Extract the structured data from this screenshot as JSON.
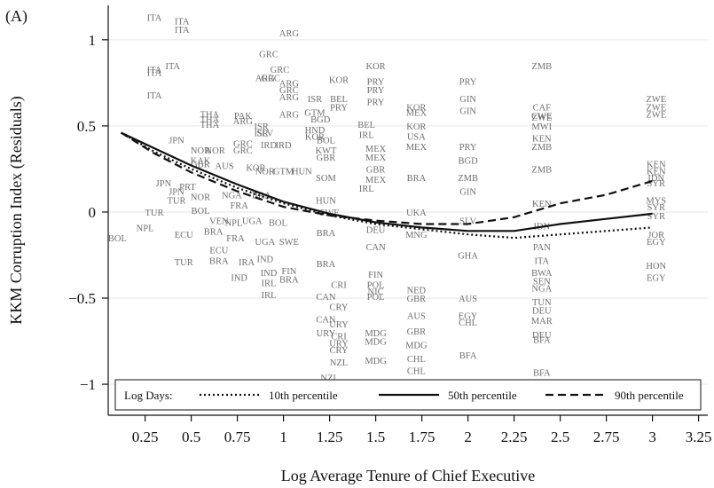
{
  "panel_label": "(A)",
  "chart_data": {
    "type": "line",
    "title": "",
    "xlabel": "Log Average Tenure of Chief Executive",
    "ylabel": "KKM Corruption Index (Residuals)",
    "xlim": [
      0.05,
      3.3
    ],
    "ylim": [
      -1.18,
      1.2
    ],
    "x_ticks": [
      0.25,
      0.5,
      0.75,
      1,
      1.25,
      1.5,
      1.75,
      2,
      2.25,
      2.5,
      2.75,
      3,
      3.25
    ],
    "x_tick_labels": [
      "0.25",
      "0.5",
      "0.75",
      "1",
      "1.25",
      "1.5",
      "1.75",
      "2",
      "2.25",
      "2.5",
      "2.75",
      "3",
      "3.25"
    ],
    "y_ticks": [
      -1,
      -0.5,
      0,
      0.5,
      1
    ],
    "y_tick_labels": [
      "−1",
      "−0.5",
      "0",
      "0.5",
      "1"
    ],
    "grid": true,
    "legend": {
      "position": "bottom",
      "title": "Log Days:",
      "entries": [
        "10th percentile",
        "50th percentile",
        "90th percentile"
      ]
    },
    "series": [
      {
        "name": "10th percentile",
        "dash": "dotted",
        "x": [
          0.12,
          0.3,
          0.5,
          0.75,
          1.0,
          1.25,
          1.5,
          1.75,
          2.0,
          2.25,
          2.5,
          2.75,
          3.0
        ],
        "y": [
          0.46,
          0.35,
          0.25,
          0.14,
          0.05,
          -0.02,
          -0.07,
          -0.1,
          -0.13,
          -0.15,
          -0.13,
          -0.11,
          -0.09
        ]
      },
      {
        "name": "50th percentile",
        "dash": "solid",
        "x": [
          0.12,
          0.3,
          0.5,
          0.75,
          1.0,
          1.25,
          1.5,
          1.75,
          2.0,
          2.25,
          2.5,
          2.75,
          3.0
        ],
        "y": [
          0.46,
          0.37,
          0.27,
          0.16,
          0.06,
          -0.01,
          -0.06,
          -0.09,
          -0.11,
          -0.11,
          -0.07,
          -0.04,
          -0.01
        ]
      },
      {
        "name": "90th percentile",
        "dash": "dashed",
        "x": [
          0.12,
          0.3,
          0.5,
          0.75,
          1.0,
          1.25,
          1.5,
          1.75,
          2.0,
          2.25,
          2.5,
          2.75,
          3.0
        ],
        "y": [
          0.46,
          0.34,
          0.23,
          0.12,
          0.03,
          -0.02,
          -0.05,
          -0.07,
          -0.07,
          -0.03,
          0.05,
          0.1,
          0.18
        ]
      }
    ],
    "points": [
      {
        "label": "ITA",
        "x": 0.3,
        "y": 1.13
      },
      {
        "label": "ITA",
        "x": 0.45,
        "y": 1.11
      },
      {
        "label": "ITA",
        "x": 0.45,
        "y": 1.06
      },
      {
        "label": "ITA",
        "x": 0.4,
        "y": 0.85
      },
      {
        "label": "ITA",
        "x": 0.3,
        "y": 0.83
      },
      {
        "label": "ITA",
        "x": 0.3,
        "y": 0.81
      },
      {
        "label": "ITA",
        "x": 0.3,
        "y": 0.68
      },
      {
        "label": "ARG",
        "x": 1.03,
        "y": 1.04
      },
      {
        "label": "GRC",
        "x": 0.92,
        "y": 0.92
      },
      {
        "label": "GRC",
        "x": 0.98,
        "y": 0.83
      },
      {
        "label": "ARG",
        "x": 0.9,
        "y": 0.78
      },
      {
        "label": "GRC",
        "x": 0.93,
        "y": 0.78
      },
      {
        "label": "ARG",
        "x": 1.03,
        "y": 0.75
      },
      {
        "label": "GRC",
        "x": 1.03,
        "y": 0.71
      },
      {
        "label": "ARG",
        "x": 1.03,
        "y": 0.67
      },
      {
        "label": "ARG",
        "x": 1.03,
        "y": 0.57
      },
      {
        "label": "KOR",
        "x": 1.3,
        "y": 0.77
      },
      {
        "label": "BEL",
        "x": 1.3,
        "y": 0.66
      },
      {
        "label": "PRY",
        "x": 1.3,
        "y": 0.61
      },
      {
        "label": "ISR",
        "x": 1.17,
        "y": 0.66
      },
      {
        "label": "GTM",
        "x": 1.17,
        "y": 0.58
      },
      {
        "label": "BGD",
        "x": 1.2,
        "y": 0.54
      },
      {
        "label": "KOR",
        "x": 1.5,
        "y": 0.85
      },
      {
        "label": "PRY",
        "x": 1.5,
        "y": 0.76
      },
      {
        "label": "PRY",
        "x": 1.5,
        "y": 0.71
      },
      {
        "label": "PRY",
        "x": 1.5,
        "y": 0.64
      },
      {
        "label": "PRY",
        "x": 2.0,
        "y": 0.76
      },
      {
        "label": "GIN",
        "x": 2.0,
        "y": 0.66
      },
      {
        "label": "GIN",
        "x": 2.0,
        "y": 0.59
      },
      {
        "label": "ZMB",
        "x": 2.4,
        "y": 0.85
      },
      {
        "label": "CAF",
        "x": 2.4,
        "y": 0.61
      },
      {
        "label": "CWE",
        "x": 2.4,
        "y": 0.56
      },
      {
        "label": "ZWE",
        "x": 2.4,
        "y": 0.55
      },
      {
        "label": "MWI",
        "x": 2.4,
        "y": 0.5
      },
      {
        "label": "ZWE",
        "x": 3.02,
        "y": 0.66
      },
      {
        "label": "ZWE",
        "x": 3.02,
        "y": 0.61
      },
      {
        "label": "ZWE",
        "x": 3.02,
        "y": 0.57
      },
      {
        "label": "KOR",
        "x": 1.72,
        "y": 0.61
      },
      {
        "label": "MEX",
        "x": 1.72,
        "y": 0.58
      },
      {
        "label": "THA",
        "x": 0.6,
        "y": 0.57
      },
      {
        "label": "THA",
        "x": 0.6,
        "y": 0.54
      },
      {
        "label": "THA",
        "x": 0.6,
        "y": 0.51
      },
      {
        "label": "PAK",
        "x": 0.78,
        "y": 0.56
      },
      {
        "label": "ARG",
        "x": 0.78,
        "y": 0.53
      },
      {
        "label": "ISR",
        "x": 0.88,
        "y": 0.5
      },
      {
        "label": "ISR",
        "x": 0.88,
        "y": 0.46
      },
      {
        "label": "JPN",
        "x": 0.42,
        "y": 0.42
      },
      {
        "label": "SLV",
        "x": 0.9,
        "y": 0.46
      },
      {
        "label": "GRC",
        "x": 0.78,
        "y": 0.4
      },
      {
        "label": "IRD",
        "x": 0.92,
        "y": 0.39
      },
      {
        "label": "IRD",
        "x": 1.0,
        "y": 0.39
      },
      {
        "label": "HND",
        "x": 1.17,
        "y": 0.48
      },
      {
        "label": "KOR",
        "x": 1.17,
        "y": 0.44
      },
      {
        "label": "BEL",
        "x": 1.45,
        "y": 0.51
      },
      {
        "label": "IRL",
        "x": 1.45,
        "y": 0.45
      },
      {
        "label": "NOR",
        "x": 0.55,
        "y": 0.36
      },
      {
        "label": "NOR",
        "x": 0.63,
        "y": 0.36
      },
      {
        "label": "GRC",
        "x": 0.78,
        "y": 0.36
      },
      {
        "label": "KAK",
        "x": 0.55,
        "y": 0.3
      },
      {
        "label": "GBR",
        "x": 0.55,
        "y": 0.28
      },
      {
        "label": "AUS",
        "x": 0.68,
        "y": 0.27
      },
      {
        "label": "NOR",
        "x": 0.9,
        "y": 0.24
      },
      {
        "label": "KOR",
        "x": 0.85,
        "y": 0.26
      },
      {
        "label": "GTM",
        "x": 1.0,
        "y": 0.24
      },
      {
        "label": "HUN",
        "x": 1.1,
        "y": 0.24
      },
      {
        "label": "JPN",
        "x": 0.35,
        "y": 0.17
      },
      {
        "label": "PRT",
        "x": 0.48,
        "y": 0.15
      },
      {
        "label": "JPN",
        "x": 0.42,
        "y": 0.12
      },
      {
        "label": "TUR",
        "x": 0.42,
        "y": 0.07
      },
      {
        "label": "NOR",
        "x": 0.55,
        "y": 0.09
      },
      {
        "label": "NGA",
        "x": 0.72,
        "y": 0.1
      },
      {
        "label": "BRA",
        "x": 0.88,
        "y": 0.1
      },
      {
        "label": "TUR",
        "x": 0.3,
        "y": 0.0
      },
      {
        "label": "BOL",
        "x": 0.55,
        "y": 0.01
      },
      {
        "label": "FRA",
        "x": 0.76,
        "y": 0.04
      },
      {
        "label": "NPL",
        "x": 0.25,
        "y": -0.09
      },
      {
        "label": "BOL",
        "x": 0.1,
        "y": -0.15
      },
      {
        "label": "VEN",
        "x": 0.65,
        "y": -0.05
      },
      {
        "label": "NPL",
        "x": 0.73,
        "y": -0.06
      },
      {
        "label": "UGA",
        "x": 0.83,
        "y": -0.05
      },
      {
        "label": "BOL",
        "x": 0.97,
        "y": -0.06
      },
      {
        "label": "ECU",
        "x": 0.46,
        "y": -0.13
      },
      {
        "label": "BRA",
        "x": 0.62,
        "y": -0.11
      },
      {
        "label": "FRA",
        "x": 0.74,
        "y": -0.15
      },
      {
        "label": "UGA",
        "x": 0.9,
        "y": -0.17
      },
      {
        "label": "SWE",
        "x": 1.03,
        "y": -0.17
      },
      {
        "label": "ECU",
        "x": 0.65,
        "y": -0.22
      },
      {
        "label": "TUR",
        "x": 0.46,
        "y": -0.29
      },
      {
        "label": "BRA",
        "x": 0.65,
        "y": -0.28
      },
      {
        "label": "IRA",
        "x": 0.8,
        "y": -0.29
      },
      {
        "label": "IND",
        "x": 0.9,
        "y": -0.27
      },
      {
        "label": "IND",
        "x": 0.92,
        "y": -0.35
      },
      {
        "label": "IND",
        "x": 0.76,
        "y": -0.38
      },
      {
        "label": "IRL",
        "x": 0.92,
        "y": -0.41
      },
      {
        "label": "IRL",
        "x": 0.92,
        "y": -0.48
      },
      {
        "label": "FIN",
        "x": 1.03,
        "y": -0.34
      },
      {
        "label": "BRA",
        "x": 1.03,
        "y": -0.39
      },
      {
        "label": "BRA",
        "x": 1.23,
        "y": -0.12
      },
      {
        "label": "BRA",
        "x": 1.23,
        "y": -0.3
      },
      {
        "label": "CAN",
        "x": 1.23,
        "y": -0.49
      },
      {
        "label": "CAN",
        "x": 1.23,
        "y": -0.62
      },
      {
        "label": "CRI",
        "x": 1.3,
        "y": -0.42
      },
      {
        "label": "CRY",
        "x": 1.3,
        "y": -0.55
      },
      {
        "label": "URY",
        "x": 1.3,
        "y": -0.65
      },
      {
        "label": "CRI",
        "x": 1.3,
        "y": -0.72
      },
      {
        "label": "URY",
        "x": 1.3,
        "y": -0.76
      },
      {
        "label": "CRY",
        "x": 1.3,
        "y": -0.8
      },
      {
        "label": "NZL",
        "x": 1.3,
        "y": -0.87
      },
      {
        "label": "NZL",
        "x": 1.25,
        "y": -0.96
      },
      {
        "label": "FIN",
        "x": 1.5,
        "y": -0.36
      },
      {
        "label": "POL",
        "x": 1.5,
        "y": -0.42
      },
      {
        "label": "NIC",
        "x": 1.5,
        "y": -0.46
      },
      {
        "label": "POL",
        "x": 1.5,
        "y": -0.49
      },
      {
        "label": "MDG",
        "x": 1.5,
        "y": -0.7
      },
      {
        "label": "MDG",
        "x": 1.5,
        "y": -0.75
      },
      {
        "label": "MDG",
        "x": 1.5,
        "y": -0.86
      },
      {
        "label": "AUS",
        "x": 1.72,
        "y": -0.6
      },
      {
        "label": "GBR",
        "x": 1.72,
        "y": -0.69
      },
      {
        "label": "MDG",
        "x": 1.72,
        "y": -0.77
      },
      {
        "label": "CHL",
        "x": 1.72,
        "y": -0.85
      },
      {
        "label": "CHL",
        "x": 1.72,
        "y": -0.92
      },
      {
        "label": "AUS",
        "x": 2.0,
        "y": -0.5
      },
      {
        "label": "EGY",
        "x": 2.0,
        "y": -0.6
      },
      {
        "label": "CHL",
        "x": 2.0,
        "y": -0.64
      },
      {
        "label": "BFA",
        "x": 2.0,
        "y": -0.83
      },
      {
        "label": "DEU",
        "x": 2.4,
        "y": -0.57
      },
      {
        "label": "MAR",
        "x": 2.4,
        "y": -0.63
      },
      {
        "label": "DEU",
        "x": 2.4,
        "y": -0.71
      },
      {
        "label": "BFA",
        "x": 2.4,
        "y": -0.74
      },
      {
        "label": "BFA",
        "x": 2.4,
        "y": -0.93
      },
      {
        "label": "KEN",
        "x": 2.4,
        "y": 0.43
      },
      {
        "label": "ZMB",
        "x": 2.4,
        "y": 0.38
      },
      {
        "label": "ZMB",
        "x": 2.4,
        "y": 0.25
      },
      {
        "label": "KEN",
        "x": 2.4,
        "y": 0.05
      },
      {
        "label": "BWA",
        "x": 2.4,
        "y": -0.35
      },
      {
        "label": "SEN",
        "x": 2.4,
        "y": -0.4
      },
      {
        "label": "KEN",
        "x": 3.02,
        "y": 0.28
      },
      {
        "label": "KEN",
        "x": 3.02,
        "y": 0.24
      },
      {
        "label": "IDN",
        "x": 3.02,
        "y": 0.2
      },
      {
        "label": "SYR",
        "x": 3.02,
        "y": 0.17
      },
      {
        "label": "MYS",
        "x": 3.02,
        "y": 0.07
      },
      {
        "label": "SYR",
        "x": 3.02,
        "y": 0.03
      },
      {
        "label": "SYR",
        "x": 3.02,
        "y": -0.02
      },
      {
        "label": "JOR",
        "x": 3.02,
        "y": -0.13
      },
      {
        "label": "EGY",
        "x": 3.02,
        "y": -0.17
      },
      {
        "label": "HON",
        "x": 3.02,
        "y": -0.31
      },
      {
        "label": "EGY",
        "x": 3.02,
        "y": -0.38
      },
      {
        "label": "GBR",
        "x": 1.72,
        "y": -0.5
      },
      {
        "label": "NED",
        "x": 1.72,
        "y": -0.45
      },
      {
        "label": "UKA",
        "x": 1.72,
        "y": 0.0
      },
      {
        "label": "BRA",
        "x": 1.72,
        "y": 0.2
      },
      {
        "label": "MEX",
        "x": 1.5,
        "y": 0.37
      },
      {
        "label": "MEX",
        "x": 1.5,
        "y": 0.32
      },
      {
        "label": "GBR",
        "x": 1.5,
        "y": 0.25
      },
      {
        "label": "MEX",
        "x": 1.5,
        "y": 0.19
      },
      {
        "label": "CAN",
        "x": 1.5,
        "y": -0.2
      },
      {
        "label": "DEU",
        "x": 1.5,
        "y": -0.1
      },
      {
        "label": "KOR",
        "x": 1.72,
        "y": 0.5
      },
      {
        "label": "USA",
        "x": 1.72,
        "y": 0.44
      },
      {
        "label": "MEX",
        "x": 1.72,
        "y": 0.38
      },
      {
        "label": "IRL",
        "x": 1.45,
        "y": 0.14
      },
      {
        "label": "SWE",
        "x": 1.25,
        "y": 0.0
      },
      {
        "label": "KWT",
        "x": 1.23,
        "y": 0.36
      },
      {
        "label": "GBR",
        "x": 1.23,
        "y": 0.32
      },
      {
        "label": "URY",
        "x": 1.23,
        "y": -0.7
      },
      {
        "label": "PRY",
        "x": 2.0,
        "y": 0.38
      },
      {
        "label": "BGD",
        "x": 2.0,
        "y": 0.3
      },
      {
        "label": "ZMB",
        "x": 2.0,
        "y": 0.2
      },
      {
        "label": "HUN",
        "x": 1.23,
        "y": 0.07
      },
      {
        "label": "SOM",
        "x": 1.23,
        "y": 0.2
      },
      {
        "label": "BOL",
        "x": 1.23,
        "y": 0.42
      },
      {
        "label": "MNG",
        "x": 1.72,
        "y": -0.13
      },
      {
        "label": "GIN",
        "x": 2.0,
        "y": 0.12
      },
      {
        "label": "SLV",
        "x": 2.0,
        "y": -0.05
      },
      {
        "label": "GHA",
        "x": 2.0,
        "y": -0.25
      },
      {
        "label": "TUN",
        "x": 2.4,
        "y": -0.52
      },
      {
        "label": "NGA",
        "x": 2.4,
        "y": -0.44
      },
      {
        "label": "PAN",
        "x": 2.4,
        "y": -0.2
      },
      {
        "label": "IDN",
        "x": 2.4,
        "y": -0.08
      },
      {
        "label": "ITA",
        "x": 2.4,
        "y": -0.28
      }
    ]
  }
}
